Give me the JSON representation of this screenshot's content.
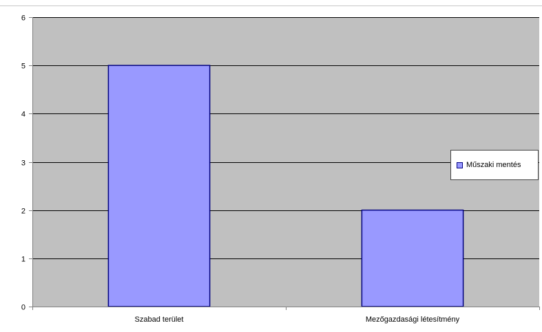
{
  "chart_data": {
    "type": "bar",
    "categories": [
      "Szabad terület",
      "Mezőgazdasági létesítmény"
    ],
    "series": [
      {
        "name": "Műszaki mentés",
        "values": [
          5,
          2
        ]
      }
    ],
    "ylim": [
      0,
      6
    ],
    "yticks": [
      0,
      1,
      2,
      3,
      4,
      5,
      6
    ],
    "grid": true,
    "legend_position": "right",
    "colors": {
      "plot_background": "#c0c0c0",
      "bar_fill": "#9999ff",
      "bar_stroke": "#000080",
      "gridline": "#000000",
      "axis": "#808080"
    }
  }
}
